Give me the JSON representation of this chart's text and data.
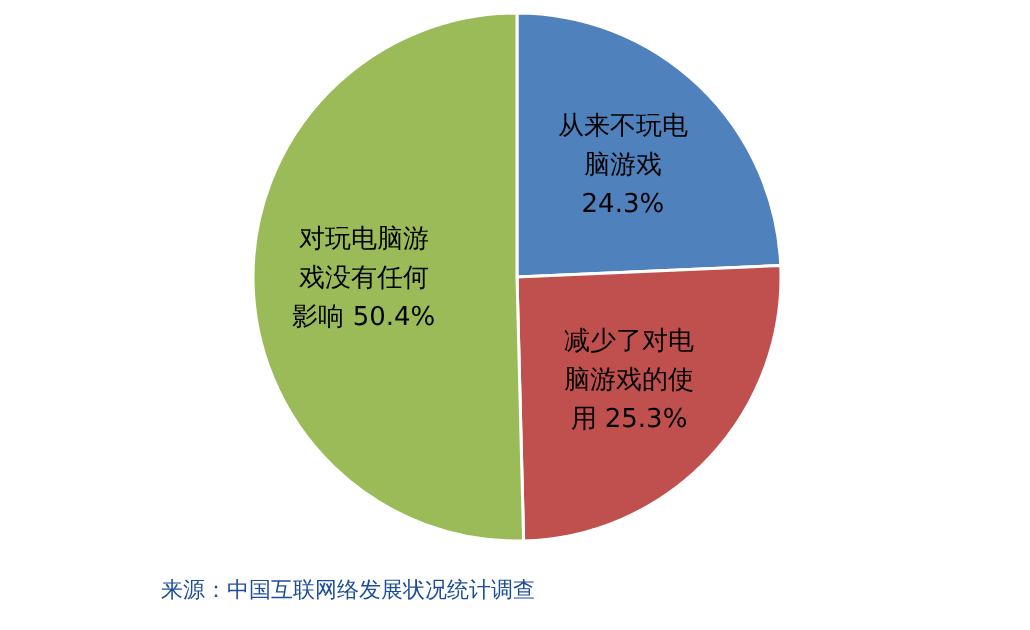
{
  "chart_data": {
    "type": "pie",
    "categories": [
      "从来不玩电脑游戏",
      "减少了对电脑游戏的使用",
      "对玩电脑游戏没有任何影响"
    ],
    "values": [
      24.3,
      25.3,
      50.4
    ],
    "value_labels": [
      "24.3%",
      "25.3%",
      "50.4%"
    ],
    "colors": [
      "#4f81bd",
      "#c0504d",
      "#9bbb59"
    ],
    "annotations": [
      "来源：中国互联网络发展状况统计调查"
    ]
  }
}
